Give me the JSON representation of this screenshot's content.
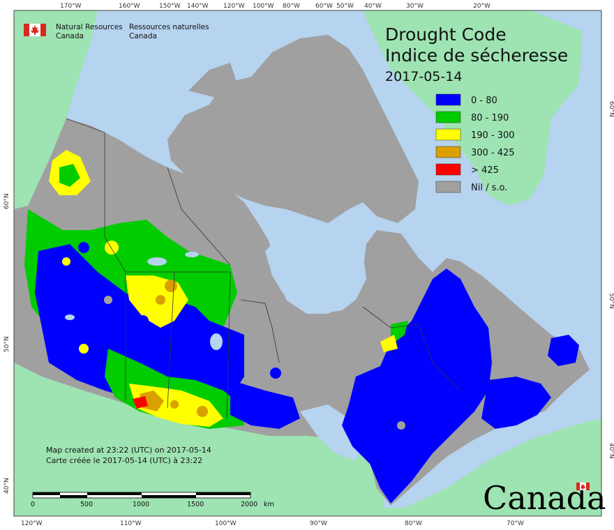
{
  "org": {
    "name_en_1": "Natural Resources",
    "name_en_2": "Canada",
    "name_fr_1": "Ressources naturelles",
    "name_fr_2": "Canada"
  },
  "title": {
    "line1": "Drought Code",
    "line2": "Indice de sécheresse",
    "date": "2017-05-14"
  },
  "legend": {
    "items": [
      {
        "label": "0 - 80",
        "color": "#0000ff"
      },
      {
        "label": "80 - 190",
        "color": "#00cc00"
      },
      {
        "label": "190 - 300",
        "color": "#ffff00"
      },
      {
        "label": "300 - 425",
        "color": "#d9a000"
      },
      {
        "label": "> 425",
        "color": "#ff0000"
      },
      {
        "label": "Nil / s.o.",
        "color": "#a0a0a0"
      }
    ]
  },
  "footer": {
    "line1": "Map created at 23:22 (UTC) on 2017-05-14",
    "line2": "Carte créée le 2017-05-14 (UTC) à 23:22"
  },
  "scale": {
    "labels": [
      "0",
      "500",
      "1000",
      "1500",
      "2000"
    ],
    "unit": "km"
  },
  "wordmark": "Canada",
  "graticule": {
    "top": [
      "170°W",
      "160°W",
      "150°W",
      "140°W",
      "120°W",
      "100°W",
      "80°W",
      "60°W",
      "50°W",
      "40°W",
      "30°W",
      "20°W"
    ],
    "bottom": [
      "120°W",
      "110°W",
      "100°W",
      "90°W",
      "80°W",
      "70°W"
    ],
    "left": [
      "60°N",
      "50°N",
      "40°N"
    ],
    "right": [
      "60°N",
      "50°N",
      "40°N"
    ]
  },
  "colors": {
    "ocean": "#b6d3ef",
    "foreign_land": "#9ee3b2",
    "nil": "#a0a0a0",
    "class_0_80": "#0000ff",
    "class_80_190": "#00cc00",
    "class_190_300": "#ffff00",
    "class_300_425": "#d9a000",
    "class_gt_425": "#ff0000"
  }
}
